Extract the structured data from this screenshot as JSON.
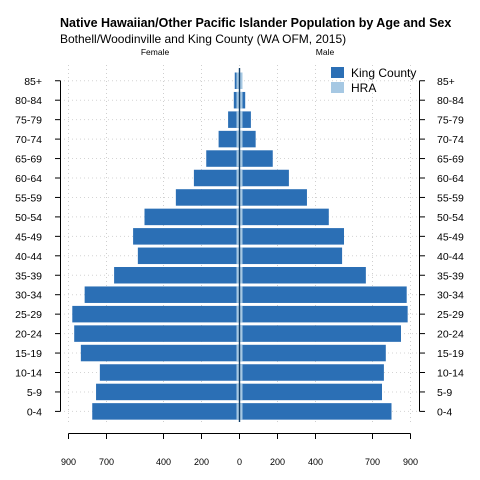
{
  "chart_data": {
    "type": "bar",
    "title": "Native Hawaiian/Other Pacific Islander Population by Age and Sex",
    "subtitle": "Bothell/Woodinville and King County (WA OFM, 2015)",
    "left_label": "Female",
    "right_label": "Male",
    "categories": [
      "0-4",
      "5-9",
      "10-14",
      "15-19",
      "20-24",
      "25-29",
      "30-34",
      "35-39",
      "40-44",
      "45-49",
      "50-54",
      "55-59",
      "60-64",
      "65-69",
      "70-74",
      "75-79",
      "80-84",
      "85+"
    ],
    "series": [
      {
        "name": "King County",
        "color": "#2b6fb5",
        "female": [
          775,
          755,
          735,
          835,
          870,
          880,
          815,
          660,
          535,
          560,
          500,
          335,
          240,
          175,
          110,
          60,
          30,
          25
        ],
        "male": [
          800,
          750,
          760,
          770,
          850,
          885,
          880,
          665,
          540,
          550,
          470,
          355,
          260,
          175,
          85,
          60,
          30,
          15
        ]
      },
      {
        "name": "HRA",
        "color": "#a6c8e3",
        "female": [
          8,
          6,
          5,
          6,
          8,
          9,
          9,
          7,
          6,
          6,
          5,
          4,
          3,
          2,
          1,
          1,
          1,
          1
        ],
        "male": [
          8,
          6,
          5,
          6,
          8,
          9,
          9,
          7,
          6,
          6,
          5,
          4,
          3,
          2,
          1,
          1,
          1,
          1
        ]
      }
    ],
    "x_ticks_left": [
      "900",
      "700",
      "400",
      "200",
      "0"
    ],
    "x_ticks_left_values": [
      900,
      700,
      400,
      200,
      0
    ],
    "x_ticks_right": [
      "200",
      "400",
      "700",
      "900"
    ],
    "x_ticks_right_values": [
      200,
      400,
      700,
      900
    ],
    "xlim": [
      -900,
      900
    ],
    "grid": true,
    "legend_position": "top-right"
  }
}
